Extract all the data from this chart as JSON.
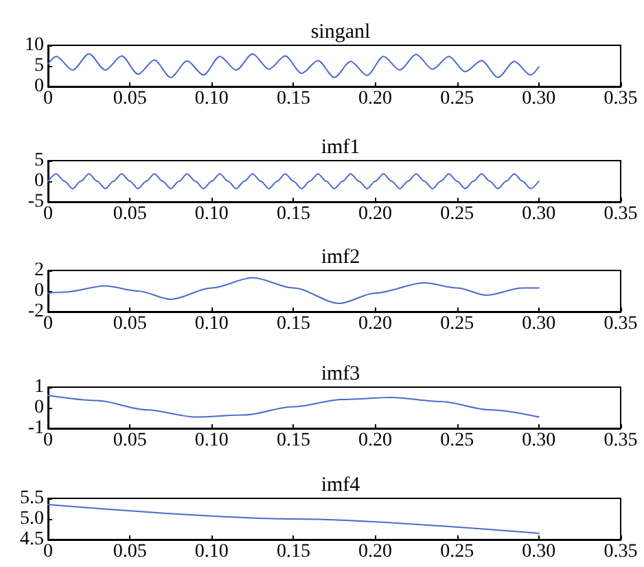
{
  "chart_data": [
    {
      "type": "line",
      "title": "singanl",
      "xlim": [
        0,
        0.35
      ],
      "xticks": [
        0,
        0.05,
        {
          "value": 0.1,
          "label": "0.10"
        },
        0.15,
        {
          "value": 0.2,
          "label": "0.20"
        },
        0.25,
        {
          "value": 0.3,
          "label": "0.30"
        },
        0.35
      ],
      "ylim": [
        0,
        10
      ],
      "yticks": [
        0,
        5,
        10
      ],
      "x": [
        0,
        0.005,
        0.015,
        0.025,
        0.035,
        0.045,
        0.055,
        0.065,
        0.075,
        0.085,
        0.095,
        0.105,
        0.115,
        0.125,
        0.135,
        0.145,
        0.155,
        0.165,
        0.175,
        0.185,
        0.195,
        0.205,
        0.215,
        0.225,
        0.235,
        0.245,
        0.255,
        0.265,
        0.275,
        0.285,
        0.295,
        0.3
      ],
      "series": [
        {
          "color": "#4a6cc8",
          "values": [
            5.5,
            7.3,
            4,
            7.9,
            4,
            7.4,
            3,
            6.4,
            2.2,
            6.2,
            2.8,
            7.3,
            4,
            7.9,
            4.2,
            7.4,
            3.2,
            6.3,
            2.2,
            6.1,
            2.7,
            7.3,
            4,
            7.8,
            4.2,
            7.3,
            3.6,
            6.3,
            2.2,
            6.1,
            2.8,
            4.8
          ]
        }
      ]
    },
    {
      "type": "line",
      "title": "imf1",
      "xlim": [
        0,
        0.35
      ],
      "xticks": [
        0,
        0.05,
        {
          "value": 0.1,
          "label": "0.10"
        },
        0.15,
        {
          "value": 0.2,
          "label": "0.20"
        },
        0.25,
        {
          "value": 0.3,
          "label": "0.30"
        },
        0.35
      ],
      "ylim": [
        -5,
        5
      ],
      "yticks": [
        -5,
        0,
        5
      ],
      "x": [
        0,
        0.005,
        0.01,
        0.015,
        0.02,
        0.025,
        0.03,
        0.035,
        0.04,
        0.045,
        0.05,
        0.055,
        0.06,
        0.065,
        0.07,
        0.075,
        0.08,
        0.085,
        0.09,
        0.095,
        0.1,
        0.105,
        0.11,
        0.115,
        0.12,
        0.125,
        0.13,
        0.135,
        0.14,
        0.145,
        0.15,
        0.155,
        0.16,
        0.165,
        0.17,
        0.175,
        0.18,
        0.185,
        0.19,
        0.195,
        0.2,
        0.205,
        0.21,
        0.215,
        0.22,
        0.225,
        0.23,
        0.235,
        0.24,
        0.245,
        0.25,
        0.255,
        0.26,
        0.265,
        0.27,
        0.275,
        0.28,
        0.285,
        0.29,
        0.295,
        0.3
      ],
      "series": [
        {
          "color": "#4a6cc8",
          "values": [
            0,
            1.8,
            0,
            -1.8,
            0,
            1.8,
            0,
            -1.8,
            0,
            1.8,
            0,
            -1.8,
            0,
            1.8,
            0,
            -1.8,
            0,
            1.8,
            0,
            -1.8,
            0,
            1.8,
            0,
            -1.8,
            0,
            1.8,
            0,
            -1.8,
            0,
            1.8,
            0,
            -1.8,
            0,
            1.8,
            0,
            -1.8,
            0,
            1.8,
            0,
            -1.8,
            0,
            1.8,
            0,
            -1.8,
            0,
            1.8,
            0,
            -1.8,
            0,
            1.8,
            0,
            -1.8,
            0,
            1.8,
            0,
            -1.8,
            0,
            1.8,
            0,
            -1.8,
            0
          ]
        }
      ]
    },
    {
      "type": "line",
      "title": "imf2",
      "xlim": [
        0,
        0.35
      ],
      "xticks": [
        0,
        0.05,
        {
          "value": 0.1,
          "label": "0.10"
        },
        0.15,
        {
          "value": 0.2,
          "label": "0.20"
        },
        0.25,
        {
          "value": 0.3,
          "label": "0.30"
        },
        0.35
      ],
      "ylim": [
        -2,
        2
      ],
      "yticks": [
        -2,
        0,
        2
      ],
      "x": [
        0,
        0.01,
        0.035,
        0.055,
        0.075,
        0.1,
        0.125,
        0.15,
        0.178,
        0.2,
        0.23,
        0.25,
        0.268,
        0.29,
        0.3
      ],
      "series": [
        {
          "color": "#4a6cc8",
          "values": [
            -0.2,
            -0.1,
            0.5,
            0,
            -0.8,
            0.3,
            1.3,
            0.3,
            -1.2,
            -0.2,
            0.8,
            0.3,
            -0.4,
            0.3,
            0.3
          ]
        }
      ]
    },
    {
      "type": "line",
      "title": "imf3",
      "xlim": [
        0,
        0.35
      ],
      "xticks": [
        0,
        0.05,
        {
          "value": 0.1,
          "label": "0.10"
        },
        0.15,
        {
          "value": 0.2,
          "label": "0.20"
        },
        0.25,
        {
          "value": 0.3,
          "label": "0.30"
        },
        0.35
      ],
      "ylim": [
        -1,
        1
      ],
      "yticks": [
        -1,
        0,
        1
      ],
      "x": [
        0,
        0.03,
        0.06,
        0.09,
        0.12,
        0.15,
        0.18,
        0.21,
        0.24,
        0.27,
        0.3
      ],
      "series": [
        {
          "color": "#4a6cc8",
          "values": [
            0.6,
            0.35,
            -0.1,
            -0.45,
            -0.35,
            0.05,
            0.4,
            0.5,
            0.3,
            -0.1,
            -0.45
          ]
        }
      ]
    },
    {
      "type": "line",
      "title": "imf4",
      "xlim": [
        0,
        0.35
      ],
      "xticks": [
        0,
        0.05,
        {
          "value": 0.1,
          "label": "0.10"
        },
        0.15,
        {
          "value": 0.2,
          "label": "0.20"
        },
        0.25,
        {
          "value": 0.3,
          "label": "0.30"
        },
        0.35
      ],
      "ylim": [
        4.5,
        5.5
      ],
      "yticks": [
        4.5,
        {
          "value": 5,
          "label": "5.0"
        },
        5.5
      ],
      "x": [
        0,
        0.15,
        0.3
      ],
      "series": [
        {
          "color": "#4a6cc8",
          "values": [
            5.35,
            5.0,
            4.65
          ]
        }
      ]
    }
  ]
}
